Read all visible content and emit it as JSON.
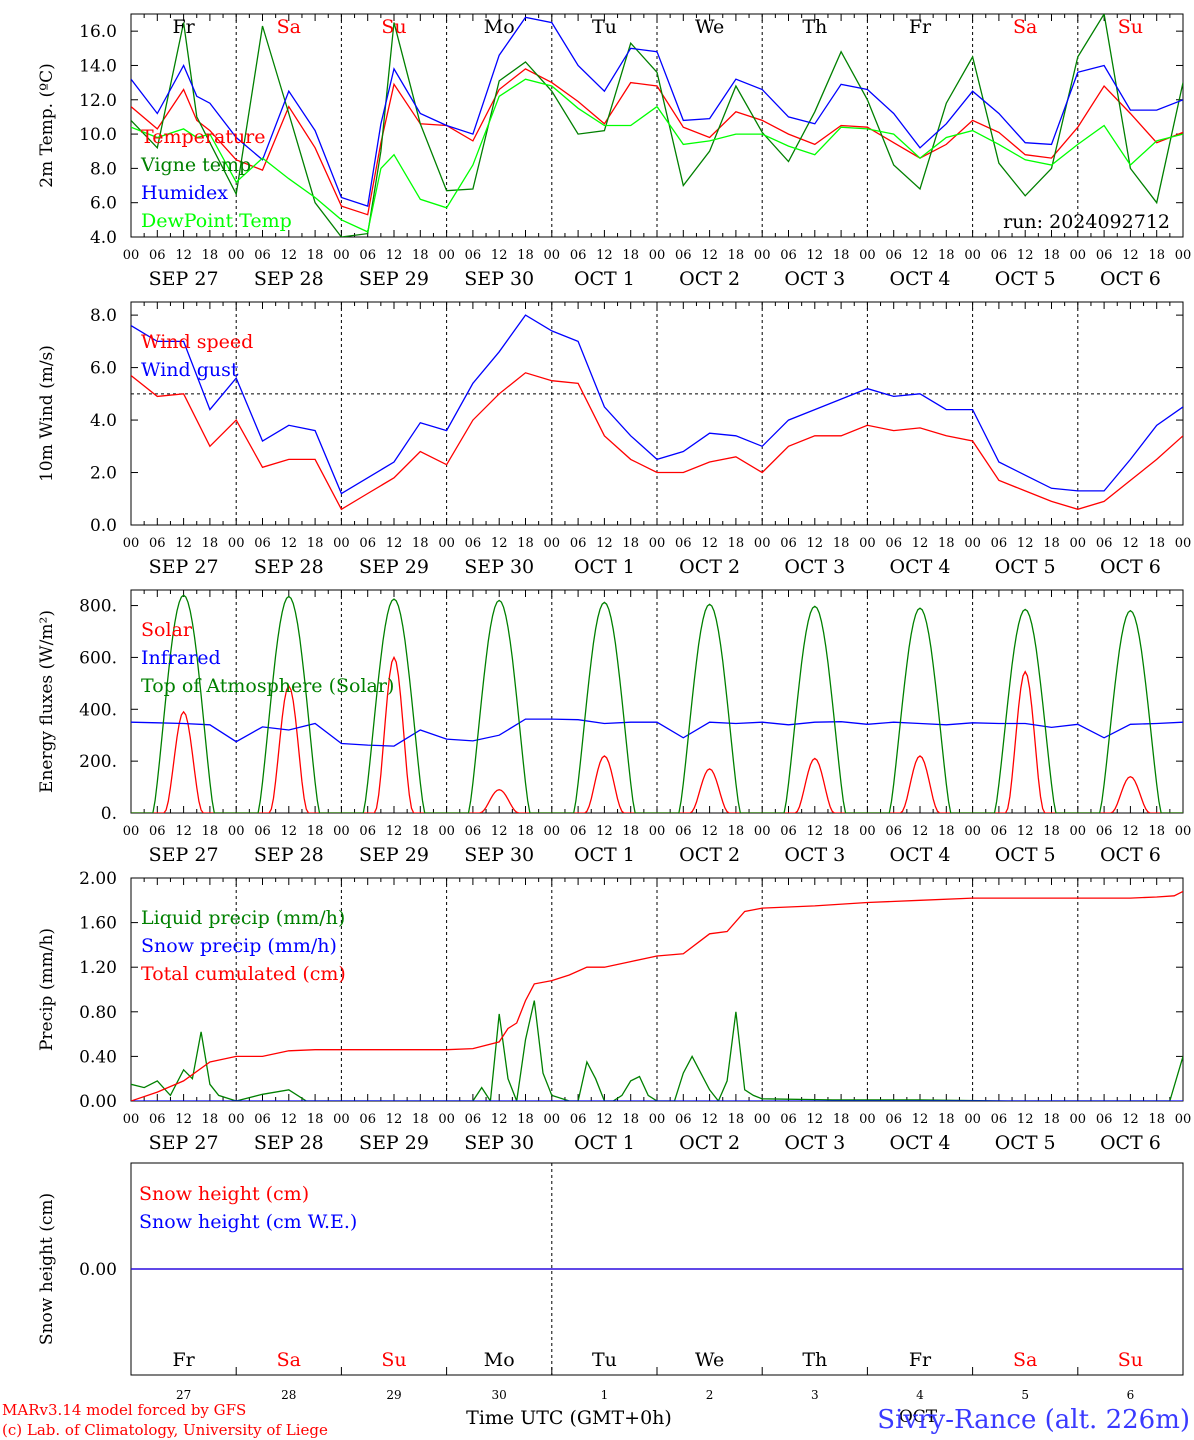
{
  "days": [
    {
      "abbr": "Fr",
      "date": "SEP 27",
      "num": "27",
      "weekend": false
    },
    {
      "abbr": "Sa",
      "date": "SEP 28",
      "num": "28",
      "weekend": true
    },
    {
      "abbr": "Su",
      "date": "SEP 29",
      "num": "29",
      "weekend": true
    },
    {
      "abbr": "Mo",
      "date": "SEP 30",
      "num": "30",
      "weekend": false
    },
    {
      "abbr": "Tu",
      "date": "OCT  1",
      "num": "1",
      "weekend": false
    },
    {
      "abbr": "We",
      "date": "OCT  2",
      "num": "2",
      "weekend": false
    },
    {
      "abbr": "Th",
      "date": "OCT  3",
      "num": "3",
      "weekend": false
    },
    {
      "abbr": "Fr",
      "date": "OCT  4",
      "num": "4",
      "weekend": false
    },
    {
      "abbr": "Sa",
      "date": "OCT  5",
      "num": "5",
      "weekend": true
    },
    {
      "abbr": "Su",
      "date": "OCT  6",
      "num": "6",
      "weekend": true
    }
  ],
  "hour_ticks": [
    "00",
    "06",
    "12",
    "18"
  ],
  "last_tick": "00",
  "colors": {
    "red": "#ff0000",
    "green": "#008000",
    "blue": "#0000ff",
    "lightgreen": "#00ff00",
    "purple": "#800080",
    "weekday": "#000000",
    "weekend": "#ff0000"
  },
  "footer": {
    "credit_line1": "MARv3.14 model forced by GFS",
    "credit_line2": "(c) Lab. of Climatology, University of Liege",
    "xlabel": "Time UTC (GMT+0h)",
    "station": "Sivry-Rance (alt. 226m)",
    "month": "OCT"
  },
  "chart_data": [
    {
      "type": "line",
      "ylabel": "2m Temp. (ºC)",
      "ylim": [
        4,
        17
      ],
      "yticks": [
        "4.0",
        "6.0",
        "8.0",
        "10.0",
        "12.0",
        "14.0",
        "16.0"
      ],
      "ytick_values": [
        4,
        6,
        8,
        10,
        12,
        14,
        16
      ],
      "annotation": "run: 2024092712",
      "x_hours": [
        0,
        240
      ],
      "series": [
        {
          "name": "Temperature",
          "color": "red",
          "x": [
            0,
            6,
            12,
            15,
            18,
            24,
            30,
            36,
            42,
            48,
            54,
            57,
            60,
            66,
            72,
            78,
            84,
            90,
            96,
            102,
            108,
            114,
            120,
            126,
            132,
            138,
            144,
            150,
            156,
            162,
            168,
            174,
            180,
            186,
            192,
            198,
            204,
            210,
            216,
            222,
            228,
            234,
            240
          ],
          "values": [
            11.6,
            10.3,
            12.6,
            10.8,
            10.2,
            8.5,
            7.9,
            11.6,
            9.2,
            5.8,
            5.3,
            9.5,
            12.9,
            10.6,
            10.5,
            9.6,
            12.6,
            13.8,
            13.0,
            11.9,
            10.6,
            13.0,
            12.8,
            10.4,
            9.8,
            11.3,
            10.8,
            10.0,
            9.4,
            10.5,
            10.4,
            9.5,
            8.6,
            9.4,
            10.8,
            10.1,
            8.8,
            8.6,
            10.4,
            12.8,
            11.2,
            9.5,
            10.1
          ]
        },
        {
          "name": "Vigne temp",
          "color": "green",
          "x": [
            0,
            6,
            12,
            15,
            18,
            24,
            30,
            36,
            42,
            48,
            54,
            57,
            60,
            66,
            72,
            78,
            84,
            90,
            96,
            102,
            108,
            114,
            120,
            126,
            132,
            138,
            144,
            150,
            156,
            162,
            168,
            174,
            180,
            186,
            192,
            198,
            204,
            210,
            216,
            222,
            228,
            234,
            240
          ],
          "values": [
            10.8,
            9.2,
            16.5,
            11.0,
            9.5,
            6.5,
            16.3,
            11.2,
            6.0,
            4.0,
            4.2,
            9.0,
            16.5,
            10.6,
            6.7,
            6.8,
            13.1,
            14.2,
            12.5,
            10.0,
            10.2,
            15.3,
            13.6,
            7.0,
            9.0,
            12.8,
            10.1,
            8.4,
            11.3,
            14.8,
            12.0,
            8.2,
            6.8,
            11.8,
            14.5,
            8.3,
            6.4,
            8.0,
            14.5,
            17.0,
            8.0,
            6.0,
            13.0
          ]
        },
        {
          "name": "Humidex",
          "color": "blue",
          "x": [
            0,
            6,
            12,
            15,
            18,
            24,
            30,
            36,
            42,
            48,
            54,
            57,
            60,
            66,
            72,
            78,
            84,
            90,
            96,
            102,
            108,
            114,
            120,
            126,
            132,
            138,
            144,
            150,
            156,
            162,
            168,
            174,
            180,
            186,
            192,
            198,
            204,
            210,
            216,
            222,
            228,
            234,
            240
          ],
          "values": [
            13.2,
            11.2,
            14.0,
            12.2,
            11.8,
            9.8,
            8.5,
            12.5,
            10.2,
            6.3,
            5.8,
            10.6,
            13.8,
            11.2,
            10.5,
            10.0,
            14.6,
            16.8,
            16.5,
            14.0,
            12.5,
            15.0,
            14.8,
            10.8,
            10.9,
            13.2,
            12.6,
            11.0,
            10.6,
            12.9,
            12.6,
            11.2,
            9.2,
            10.6,
            12.5,
            11.2,
            9.5,
            9.4,
            13.6,
            14.0,
            11.4,
            11.4,
            12.0
          ]
        },
        {
          "name": "DewPoint Temp",
          "color": "lightgreen",
          "x": [
            0,
            6,
            12,
            15,
            18,
            24,
            30,
            36,
            42,
            48,
            54,
            57,
            60,
            66,
            72,
            78,
            84,
            90,
            96,
            102,
            108,
            114,
            120,
            126,
            132,
            138,
            144,
            150,
            156,
            162,
            168,
            174,
            180,
            186,
            192,
            198,
            204,
            210,
            216,
            222,
            228,
            234,
            240
          ],
          "values": [
            10.4,
            9.8,
            10.3,
            9.8,
            10.0,
            7.2,
            8.6,
            7.4,
            6.3,
            5.0,
            4.3,
            8.0,
            8.8,
            6.2,
            5.7,
            8.2,
            12.2,
            13.2,
            12.8,
            11.5,
            10.5,
            10.5,
            11.6,
            9.4,
            9.6,
            10.0,
            10.0,
            9.3,
            8.8,
            10.4,
            10.3,
            10.0,
            8.6,
            9.8,
            10.2,
            9.4,
            8.5,
            8.2,
            9.4,
            10.5,
            8.2,
            9.6,
            10.0
          ]
        }
      ]
    },
    {
      "type": "line",
      "ylabel": "10m Wind (m/s)",
      "ylim": [
        0,
        8.5
      ],
      "yticks": [
        "0.0",
        "2.0",
        "4.0",
        "6.0",
        "8.0"
      ],
      "ytick_values": [
        0,
        2,
        4,
        6,
        8
      ],
      "reference_line": 5,
      "x_hours": [
        0,
        240
      ],
      "series": [
        {
          "name": "Wind speed",
          "color": "red",
          "x": [
            0,
            6,
            12,
            18,
            24,
            30,
            36,
            42,
            48,
            54,
            60,
            66,
            72,
            78,
            84,
            90,
            96,
            102,
            108,
            114,
            120,
            126,
            132,
            138,
            144,
            150,
            156,
            162,
            168,
            174,
            180,
            186,
            192,
            198,
            204,
            210,
            216,
            222,
            228,
            234,
            240
          ],
          "values": [
            5.7,
            4.9,
            5.0,
            3.0,
            4.0,
            2.2,
            2.5,
            2.5,
            0.6,
            1.2,
            1.8,
            2.8,
            2.3,
            4.0,
            5.0,
            5.8,
            5.5,
            5.4,
            3.4,
            2.5,
            2.0,
            2.0,
            2.4,
            2.6,
            2.0,
            3.0,
            3.4,
            3.4,
            3.8,
            3.6,
            3.7,
            3.4,
            3.2,
            1.7,
            1.3,
            0.9,
            0.6,
            0.9,
            1.7,
            2.5,
            3.4
          ]
        },
        {
          "name": "Wind gust",
          "color": "blue",
          "x": [
            0,
            6,
            12,
            18,
            24,
            30,
            36,
            42,
            48,
            54,
            60,
            66,
            72,
            78,
            84,
            90,
            96,
            102,
            108,
            114,
            120,
            126,
            132,
            138,
            144,
            150,
            156,
            162,
            168,
            174,
            180,
            186,
            192,
            198,
            204,
            210,
            216,
            222,
            228,
            234,
            240
          ],
          "values": [
            7.6,
            7.0,
            7.0,
            4.4,
            5.6,
            3.2,
            3.8,
            3.6,
            1.2,
            1.8,
            2.4,
            3.9,
            3.6,
            5.4,
            6.6,
            8.0,
            7.4,
            7.0,
            4.5,
            3.4,
            2.5,
            2.8,
            3.5,
            3.4,
            3.0,
            4.0,
            4.4,
            4.8,
            5.2,
            4.9,
            5.0,
            4.4,
            4.4,
            2.4,
            1.9,
            1.4,
            1.3,
            1.3,
            2.5,
            3.8,
            4.5
          ]
        }
      ]
    },
    {
      "type": "line",
      "ylabel": "Energy fluxes (W/m²)",
      "ylim": [
        0,
        860
      ],
      "yticks": [
        "0.",
        "200.",
        "400.",
        "600.",
        "800."
      ],
      "ytick_values": [
        0,
        200,
        400,
        600,
        800
      ],
      "x_hours": [
        0,
        240
      ],
      "series": [
        {
          "name": "Solar",
          "color": "red",
          "day_peaks": [
            390,
            490,
            600,
            90,
            220,
            170,
            210,
            220,
            545,
            140
          ]
        },
        {
          "name": "Infrared",
          "color": "blue",
          "x": [
            0,
            6,
            12,
            18,
            24,
            30,
            36,
            42,
            48,
            54,
            60,
            66,
            72,
            78,
            84,
            90,
            96,
            102,
            108,
            114,
            120,
            126,
            132,
            138,
            144,
            150,
            156,
            162,
            168,
            174,
            180,
            186,
            192,
            198,
            204,
            210,
            216,
            222,
            228,
            234,
            240
          ],
          "values": [
            350,
            348,
            345,
            340,
            275,
            332,
            320,
            345,
            268,
            262,
            258,
            320,
            285,
            278,
            300,
            362,
            362,
            360,
            345,
            350,
            350,
            290,
            350,
            345,
            350,
            340,
            350,
            352,
            342,
            350,
            345,
            340,
            348,
            345,
            345,
            330,
            342,
            290,
            342,
            345,
            350
          ]
        },
        {
          "name": "Top of Atmosphere (Solar)",
          "color": "green",
          "day_peaks": [
            840,
            835,
            825,
            820,
            812,
            805,
            797,
            790,
            785,
            780
          ]
        }
      ]
    },
    {
      "type": "line",
      "ylabel": "Precip (mm/h)",
      "ylim": [
        0,
        2
      ],
      "yticks": [
        "0.00",
        "0.40",
        "0.80",
        "1.20",
        "1.60",
        "2.00"
      ],
      "ytick_values": [
        0,
        0.4,
        0.8,
        1.2,
        1.6,
        2.0
      ],
      "x_hours": [
        0,
        240
      ],
      "series": [
        {
          "name": "Liquid precip (mm/h)",
          "color": "green",
          "x": [
            0,
            3,
            6,
            9,
            12,
            14,
            16,
            18,
            20,
            24,
            30,
            36,
            40,
            42,
            48,
            60,
            72,
            78,
            80,
            82,
            84,
            86,
            88,
            90,
            92,
            94,
            96,
            100,
            102,
            104,
            106,
            108,
            110,
            112,
            114,
            116,
            118,
            120,
            124,
            126,
            128,
            132,
            134,
            136,
            138,
            140,
            142,
            144,
            160,
            180,
            200,
            220,
            237,
            240
          ],
          "values": [
            0.15,
            0.12,
            0.18,
            0.05,
            0.28,
            0.2,
            0.62,
            0.15,
            0.05,
            0.0,
            0.06,
            0.1,
            0.0,
            0.0,
            0.0,
            0.0,
            0.0,
            0.0,
            0.12,
            0.0,
            0.78,
            0.2,
            0.0,
            0.55,
            0.9,
            0.25,
            0.05,
            0.0,
            0.0,
            0.35,
            0.2,
            0.0,
            0.0,
            0.05,
            0.18,
            0.22,
            0.05,
            0.0,
            0.0,
            0.25,
            0.4,
            0.1,
            0.0,
            0.18,
            0.8,
            0.1,
            0.05,
            0.02,
            0.01,
            0.01,
            0.0,
            0.0,
            0.0,
            0.4
          ]
        },
        {
          "name": "Snow precip (mm/h)",
          "color": "blue",
          "x": [
            0,
            240
          ],
          "values": [
            0,
            0
          ]
        },
        {
          "name": "Total cumulated (cm)",
          "color": "red",
          "x": [
            0,
            6,
            12,
            18,
            24,
            30,
            36,
            42,
            48,
            60,
            72,
            78,
            84,
            86,
            88,
            90,
            92,
            96,
            100,
            104,
            108,
            114,
            120,
            126,
            132,
            136,
            140,
            144,
            150,
            156,
            168,
            180,
            192,
            204,
            216,
            228,
            234,
            238,
            240
          ],
          "values": [
            0.0,
            0.08,
            0.18,
            0.35,
            0.4,
            0.4,
            0.45,
            0.46,
            0.46,
            0.46,
            0.46,
            0.47,
            0.53,
            0.65,
            0.7,
            0.9,
            1.05,
            1.08,
            1.13,
            1.2,
            1.2,
            1.25,
            1.3,
            1.32,
            1.5,
            1.52,
            1.7,
            1.73,
            1.74,
            1.75,
            1.78,
            1.8,
            1.82,
            1.82,
            1.82,
            1.82,
            1.83,
            1.84,
            1.88
          ]
        }
      ]
    },
    {
      "type": "line",
      "ylabel": "Snow height (cm)",
      "ylim": [
        -1,
        1
      ],
      "yticks": [
        "0.00"
      ],
      "ytick_values": [
        0
      ],
      "x_hours": [
        0,
        240
      ],
      "series": [
        {
          "name": "Snow height (cm)",
          "color": "red",
          "x": [
            0,
            240
          ],
          "values": [
            0,
            0
          ]
        },
        {
          "name": "Snow height (cm W.E.)",
          "color": "blue",
          "x": [
            0,
            240
          ],
          "values": [
            0,
            0
          ]
        }
      ]
    }
  ]
}
